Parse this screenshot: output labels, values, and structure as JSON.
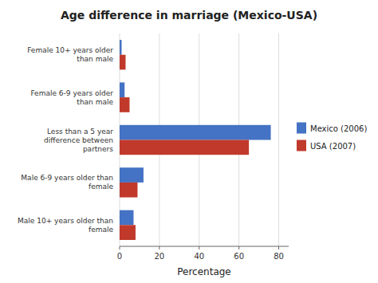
{
  "chart_data": {
    "type": "bar",
    "orientation": "horizontal",
    "title": "Age difference in marriage (Mexico-USA)",
    "categories": [
      "Female 10+ years older than male",
      "Female 6-9 years older than male",
      "Less than a 5 year difference between partners",
      "Male 6-9 years older than female",
      "Male 10+ years older than female"
    ],
    "series": [
      {
        "name": "Mexico (2006)",
        "color": "#4472C4",
        "values": [
          1,
          2.5,
          76,
          12,
          7
        ]
      },
      {
        "name": "USA (2007)",
        "color": "#C0392B",
        "values": [
          3,
          5,
          65,
          9,
          8
        ]
      }
    ],
    "xlabel": "Percentage",
    "xlim": [
      0,
      85
    ],
    "xticks": [
      0,
      20,
      40,
      60,
      80
    ],
    "grid": true,
    "legend": "right"
  }
}
